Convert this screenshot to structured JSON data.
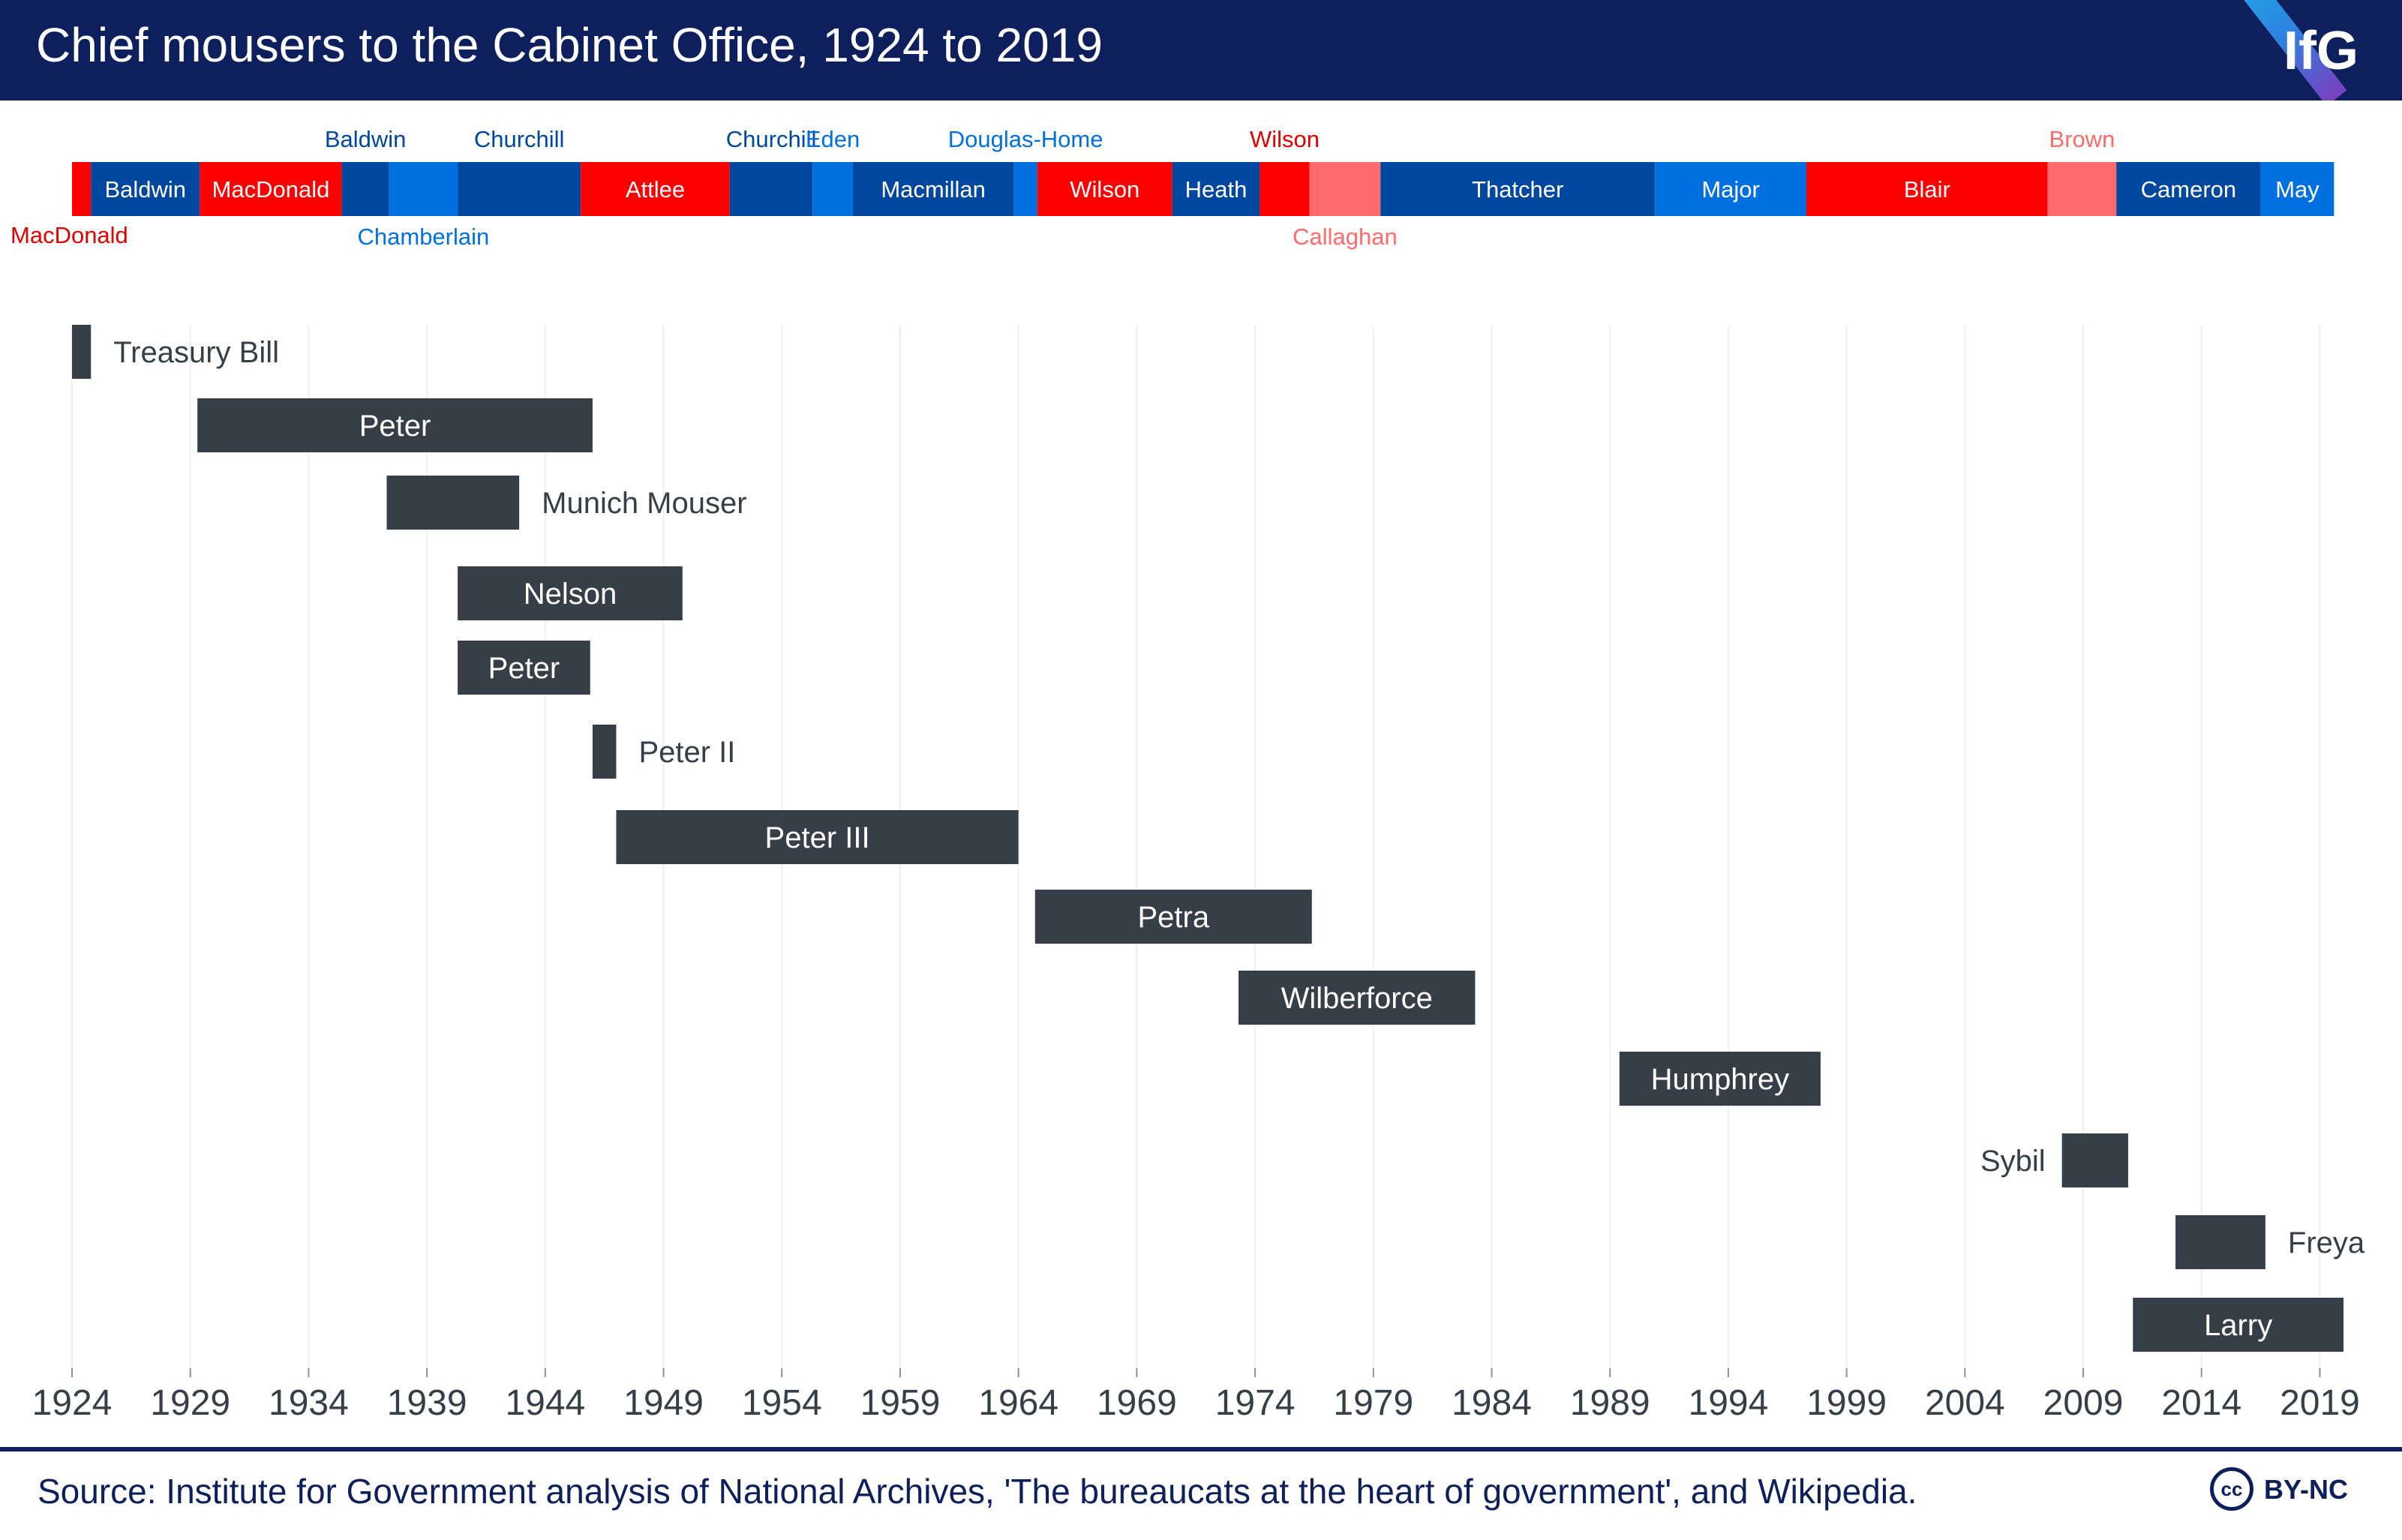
{
  "header": {
    "title": "Chief mousers to the Cabinet Office, 1924 to 2019",
    "logo": "IfG"
  },
  "footer": {
    "source": "Source: Institute for Government analysis of National Archives, 'The bureaucats at the heart of government', and Wikipedia.",
    "license_icon": "cc",
    "license": "BY-NC"
  },
  "colors": {
    "header_bg": "#0d1f5c",
    "labour": "#ff0000",
    "labour_light": "#ff6b6b",
    "conservative": "#0047a0",
    "conservative_light": "#0070e0",
    "mouser_bar": "#363e47"
  },
  "chart_data": {
    "type": "timeline",
    "title": "Chief mousers to the Cabinet Office, 1924 to 2019",
    "xlim": [
      1924,
      2020
    ],
    "x_ticks": [
      1924,
      1929,
      1934,
      1939,
      1944,
      1949,
      1954,
      1959,
      1964,
      1969,
      1974,
      1979,
      1984,
      1989,
      1994,
      1999,
      2004,
      2009,
      2014,
      2019
    ],
    "grid": "vertical",
    "prime_ministers": [
      {
        "name": "MacDonald",
        "start": 1924.0,
        "end": 1924.8,
        "color": "#ff0000"
      },
      {
        "name": "Baldwin",
        "start": 1924.8,
        "end": 1929.4,
        "color": "#0047a0"
      },
      {
        "name": "MacDonald",
        "start": 1929.4,
        "end": 1935.4,
        "color": "#ff0000"
      },
      {
        "name": "Baldwin",
        "start": 1935.4,
        "end": 1937.4,
        "color": "#0047a0"
      },
      {
        "name": "Chamberlain",
        "start": 1937.4,
        "end": 1940.3,
        "color": "#0070e0"
      },
      {
        "name": "Churchill",
        "start": 1940.3,
        "end": 1945.5,
        "color": "#0047a0"
      },
      {
        "name": "Attlee",
        "start": 1945.5,
        "end": 1951.8,
        "color": "#ff0000"
      },
      {
        "name": "Churchill",
        "start": 1951.8,
        "end": 1955.3,
        "color": "#0047a0"
      },
      {
        "name": "Eden",
        "start": 1955.3,
        "end": 1957.0,
        "color": "#0070e0"
      },
      {
        "name": "Macmillan",
        "start": 1957.0,
        "end": 1963.8,
        "color": "#0047a0"
      },
      {
        "name": "Douglas-Home",
        "start": 1963.8,
        "end": 1964.8,
        "color": "#0070e0"
      },
      {
        "name": "Wilson",
        "start": 1964.8,
        "end": 1970.5,
        "color": "#ff0000"
      },
      {
        "name": "Heath",
        "start": 1970.5,
        "end": 1974.2,
        "color": "#0047a0"
      },
      {
        "name": "Wilson",
        "start": 1974.2,
        "end": 1976.3,
        "color": "#ff0000"
      },
      {
        "name": "Callaghan",
        "start": 1976.3,
        "end": 1979.3,
        "color": "#ff6b6b"
      },
      {
        "name": "Thatcher",
        "start": 1979.3,
        "end": 1990.9,
        "color": "#0047a0"
      },
      {
        "name": "Major",
        "start": 1990.9,
        "end": 1997.3,
        "color": "#0070e0"
      },
      {
        "name": "Blair",
        "start": 1997.3,
        "end": 2007.5,
        "color": "#ff0000"
      },
      {
        "name": "Brown",
        "start": 2007.5,
        "end": 2010.4,
        "color": "#ff6b6b"
      },
      {
        "name": "Cameron",
        "start": 2010.4,
        "end": 2016.5,
        "color": "#0047a0"
      },
      {
        "name": "May",
        "start": 2016.5,
        "end": 2019.6,
        "color": "#0070e0"
      }
    ],
    "mousers": [
      {
        "name": "Treasury Bill",
        "start": 1924.0,
        "end": 1924.8
      },
      {
        "name": "Peter",
        "start": 1929.3,
        "end": 1946.0
      },
      {
        "name": "Munich Mouser",
        "start": 1937.3,
        "end": 1942.9
      },
      {
        "name": "Nelson",
        "start": 1940.3,
        "end": 1949.8
      },
      {
        "name": "Peter",
        "start": 1940.3,
        "end": 1945.9
      },
      {
        "name": "Peter II",
        "start": 1946.0,
        "end": 1947.0
      },
      {
        "name": "Peter III",
        "start": 1947.0,
        "end": 1964.0
      },
      {
        "name": "Petra",
        "start": 1964.7,
        "end": 1976.4
      },
      {
        "name": "Wilberforce",
        "start": 1973.3,
        "end": 1983.3
      },
      {
        "name": "Humphrey",
        "start": 1989.4,
        "end": 1997.9
      },
      {
        "name": "Sybil",
        "start": 2008.1,
        "end": 2010.9
      },
      {
        "name": "Freya",
        "start": 2012.9,
        "end": 2016.7
      },
      {
        "name": "Larry",
        "start": 2011.1,
        "end": 2020.0
      }
    ]
  }
}
